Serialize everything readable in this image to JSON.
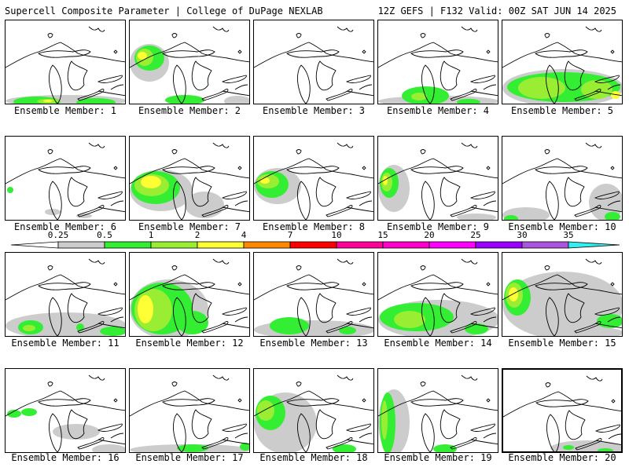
{
  "header": {
    "title": "Supercell Composite Parameter | College of DuPage NEXLAB",
    "run_info": "12Z GEFS | F132 Valid: 00Z SAT JUN 14 2025"
  },
  "colorbar": {
    "labels": [
      "0.25",
      "0.5",
      "1",
      "2",
      "4",
      "7",
      "10",
      "15",
      "20",
      "25",
      "30",
      "35"
    ],
    "colors": [
      "#cccccc",
      "#33ee33",
      "#99ee33",
      "#ffff33",
      "#ff8800",
      "#ff0000",
      "#ff0099",
      "#ff00cc",
      "#ff00ff",
      "#9900ff",
      "#aa55dd",
      "#33eeee"
    ]
  },
  "colors": {
    "light": "#cccccc",
    "green": "#33ee33",
    "yellowgreen": "#99ee33",
    "yellow": "#ffff33"
  },
  "panels": [
    {
      "label": "Ensemble Member: 1"
    },
    {
      "label": "Ensemble Member: 2"
    },
    {
      "label": "Ensemble Member: 3"
    },
    {
      "label": "Ensemble Member: 4"
    },
    {
      "label": "Ensemble Member: 5"
    },
    {
      "label": "Ensemble Member: 6"
    },
    {
      "label": "Ensemble Member: 7"
    },
    {
      "label": "Ensemble Member: 8"
    },
    {
      "label": "Ensemble Member: 9"
    },
    {
      "label": "Ensemble Member: 10"
    },
    {
      "label": "Ensemble Member: 11"
    },
    {
      "label": "Ensemble Member: 12"
    },
    {
      "label": "Ensemble Member: 13"
    },
    {
      "label": "Ensemble Member: 14"
    },
    {
      "label": "Ensemble Member: 15"
    },
    {
      "label": "Ensemble Member: 16"
    },
    {
      "label": "Ensemble Member: 17"
    },
    {
      "label": "Ensemble Member: 18"
    },
    {
      "label": "Ensemble Member: 19"
    },
    {
      "label": "Ensemble Member: 20"
    }
  ]
}
